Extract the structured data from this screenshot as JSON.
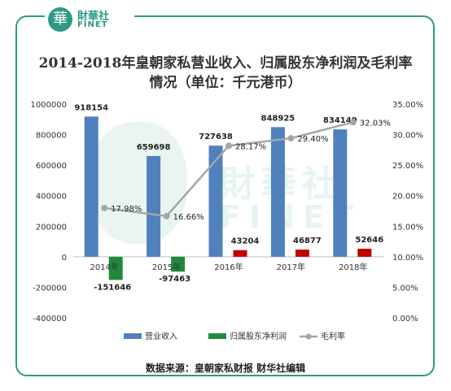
{
  "header": {
    "logo_glyph": "華",
    "logo_cn": "財華社",
    "logo_en": "FINET"
  },
  "watermark": {
    "cn": "財華社",
    "en": "FINET"
  },
  "source_text": "数据来源：皇朝家私财报   财华社编辑",
  "colors": {
    "frame": "#2e9a83",
    "revenue": "#4f81bd",
    "profit": "#1f8a3c",
    "margin": "#a6a6a6",
    "positive_profit": "#c00000"
  },
  "chart_data": {
    "type": "bar",
    "title": "2014-2018年皇朝家私营业收入、归属股东净利润及毛利率情况（单位：千元港币）",
    "categories": [
      "2014年",
      "2015年",
      "2016年",
      "2017年",
      "2018年"
    ],
    "series": [
      {
        "name": "营业收入",
        "kind": "bar",
        "axis": "left",
        "values": [
          918154,
          659698,
          727638,
          848925,
          834149
        ],
        "labels": [
          "918154",
          "659698",
          "727638",
          "848925",
          "834149"
        ]
      },
      {
        "name": "归属股东净利润",
        "kind": "bar",
        "axis": "left",
        "values": [
          -151646,
          -97463,
          43204,
          46877,
          52646
        ],
        "labels": [
          "-151646",
          "-97463",
          "43204",
          "46877",
          "52646"
        ]
      },
      {
        "name": "毛利率",
        "kind": "line",
        "axis": "right",
        "values": [
          17.98,
          16.66,
          28.17,
          29.4,
          32.03
        ],
        "labels": [
          "17.98%",
          "16.66%",
          "28.17%",
          "29.40%",
          "32.03%"
        ]
      }
    ],
    "y_left": {
      "min": -400000,
      "max": 1000000,
      "ticks": [
        "1000000",
        "800000",
        "600000",
        "400000",
        "200000",
        "0",
        "-200000",
        "-400000"
      ]
    },
    "y_right": {
      "min": 0,
      "max": 35,
      "ticks": [
        "35.00%",
        "30.00%",
        "25.00%",
        "20.00%",
        "15.00%",
        "10.00%",
        "5.00%",
        "0.00%"
      ]
    },
    "legend_position": "bottom",
    "grid": false
  }
}
